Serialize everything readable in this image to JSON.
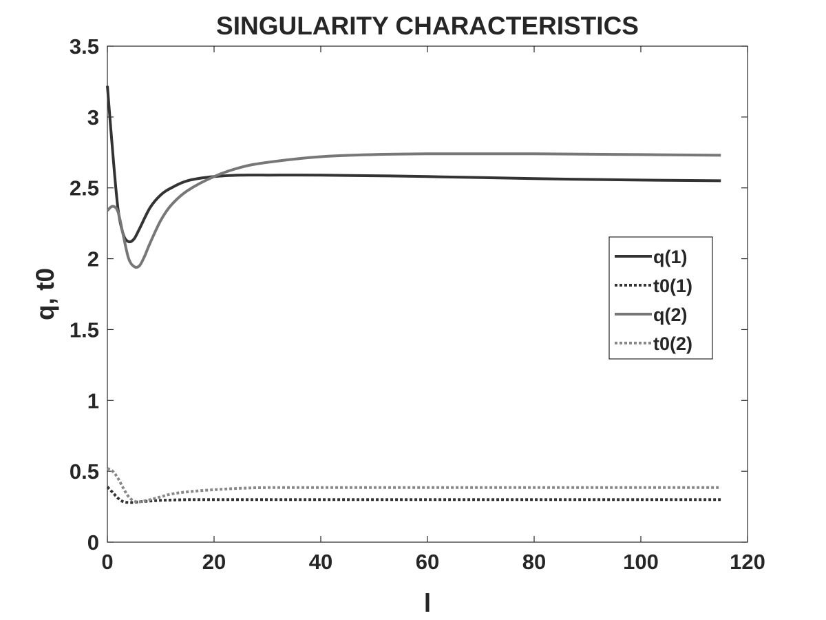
{
  "chart_data": {
    "type": "line",
    "title": "SINGULARITY CHARACTERISTICS",
    "xlabel": "l",
    "ylabel": "q, t0",
    "xlim": [
      0,
      120
    ],
    "ylim": [
      0,
      3.5
    ],
    "xticks": [
      0,
      20,
      40,
      60,
      80,
      100,
      120
    ],
    "yticks": [
      0,
      0.5,
      1,
      1.5,
      2,
      2.5,
      3,
      3.5
    ],
    "xtick_labels": [
      "0",
      "20",
      "40",
      "60",
      "80",
      "100",
      "120"
    ],
    "ytick_labels": [
      "0",
      "0.5",
      "1",
      "1.5",
      "2",
      "2.5",
      "3",
      "3.5"
    ],
    "grid": false,
    "legend_position": "right",
    "series": [
      {
        "name": "q(1)",
        "style": "solid",
        "color": "#333333",
        "x": [
          0,
          1,
          2,
          3,
          4,
          5,
          6,
          8,
          10,
          12,
          15,
          20,
          25,
          30,
          40,
          60,
          80,
          100,
          115
        ],
        "y": [
          3.22,
          2.75,
          2.35,
          2.17,
          2.12,
          2.14,
          2.21,
          2.36,
          2.45,
          2.5,
          2.55,
          2.58,
          2.59,
          2.59,
          2.59,
          2.58,
          2.565,
          2.555,
          2.55
        ]
      },
      {
        "name": "t0(1)",
        "style": "dotted",
        "color": "#333333",
        "x": [
          0,
          1,
          2,
          3,
          4,
          5,
          6,
          8,
          10,
          15,
          20,
          40,
          60,
          80,
          100,
          115
        ],
        "y": [
          0.39,
          0.35,
          0.31,
          0.285,
          0.28,
          0.28,
          0.285,
          0.29,
          0.295,
          0.3,
          0.3,
          0.3,
          0.3,
          0.3,
          0.3,
          0.3
        ]
      },
      {
        "name": "q(2)",
        "style": "solid",
        "color": "#777777",
        "x": [
          0,
          1,
          2,
          3,
          4,
          5,
          6,
          7,
          8,
          10,
          12,
          15,
          20,
          25,
          30,
          40,
          50,
          60,
          70,
          80,
          100,
          115
        ],
        "y": [
          2.34,
          2.37,
          2.33,
          2.16,
          2.0,
          1.945,
          1.95,
          2.02,
          2.11,
          2.27,
          2.38,
          2.48,
          2.58,
          2.645,
          2.68,
          2.72,
          2.735,
          2.74,
          2.74,
          2.74,
          2.735,
          2.73
        ]
      },
      {
        "name": "t0(2)",
        "style": "dotted",
        "color": "#888888",
        "x": [
          0,
          1,
          2,
          3,
          4,
          5,
          6,
          8,
          10,
          12,
          15,
          20,
          25,
          30,
          40,
          60,
          80,
          100,
          115
        ],
        "y": [
          0.52,
          0.5,
          0.45,
          0.38,
          0.32,
          0.29,
          0.285,
          0.3,
          0.32,
          0.34,
          0.355,
          0.37,
          0.38,
          0.385,
          0.385,
          0.385,
          0.385,
          0.385,
          0.385
        ]
      }
    ]
  }
}
